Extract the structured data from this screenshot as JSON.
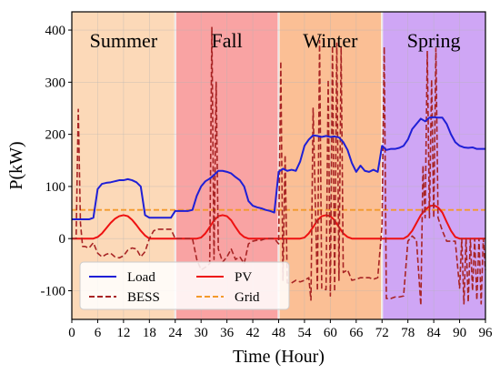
{
  "chart_data": {
    "type": "line",
    "xlabel": "Time (Hour)",
    "ylabel": "P(kW)",
    "xlim": [
      0,
      96
    ],
    "ylim": [
      -155,
      435
    ],
    "xticks": [
      0,
      6,
      12,
      18,
      24,
      30,
      36,
      42,
      48,
      54,
      60,
      66,
      72,
      78,
      84,
      90,
      96
    ],
    "yticks": [
      -100,
      0,
      100,
      200,
      300,
      400
    ],
    "grid": true,
    "legend_position": "bottom-left",
    "seasons": [
      {
        "name": "Summer",
        "start": 0,
        "end": 24,
        "color": "#fcd9b8"
      },
      {
        "name": "Fall",
        "start": 24,
        "end": 48,
        "color": "#f9a3a3"
      },
      {
        "name": "Winter",
        "start": 48,
        "end": 72,
        "color": "#fbbf95"
      },
      {
        "name": "Spring",
        "start": 72,
        "end": 96,
        "color": "#cfa6f5"
      }
    ],
    "series": [
      {
        "name": "Load",
        "color": "#1f1fd6",
        "style": "solid",
        "points": [
          [
            0,
            37
          ],
          [
            1,
            37
          ],
          [
            2,
            37
          ],
          [
            3,
            37
          ],
          [
            4,
            37
          ],
          [
            5,
            40
          ],
          [
            6,
            95
          ],
          [
            7,
            105
          ],
          [
            8,
            107
          ],
          [
            9,
            108
          ],
          [
            10,
            110
          ],
          [
            11,
            112
          ],
          [
            12,
            112
          ],
          [
            13,
            114
          ],
          [
            14,
            112
          ],
          [
            15,
            108
          ],
          [
            16,
            100
          ],
          [
            17,
            45
          ],
          [
            18,
            40
          ],
          [
            19,
            40
          ],
          [
            20,
            40
          ],
          [
            21,
            40
          ],
          [
            22,
            40
          ],
          [
            23,
            40
          ],
          [
            24,
            53
          ],
          [
            25,
            53
          ],
          [
            26,
            53
          ],
          [
            27,
            53
          ],
          [
            28,
            55
          ],
          [
            29,
            82
          ],
          [
            30,
            100
          ],
          [
            31,
            110
          ],
          [
            32,
            115
          ],
          [
            33,
            122
          ],
          [
            34,
            130
          ],
          [
            35,
            130
          ],
          [
            36,
            128
          ],
          [
            37,
            125
          ],
          [
            38,
            118
          ],
          [
            39,
            112
          ],
          [
            40,
            100
          ],
          [
            41,
            72
          ],
          [
            42,
            63
          ],
          [
            43,
            60
          ],
          [
            44,
            58
          ],
          [
            45,
            55
          ],
          [
            46,
            53
          ],
          [
            47,
            50
          ],
          [
            48,
            128
          ],
          [
            49,
            134
          ],
          [
            50,
            130
          ],
          [
            51,
            132
          ],
          [
            52,
            130
          ],
          [
            53,
            148
          ],
          [
            54,
            178
          ],
          [
            55,
            190
          ],
          [
            56,
            198
          ],
          [
            57,
            197
          ],
          [
            58,
            195
          ],
          [
            59,
            197
          ],
          [
            60,
            195
          ],
          [
            61,
            196
          ],
          [
            62,
            194
          ],
          [
            63,
            185
          ],
          [
            64,
            170
          ],
          [
            65,
            145
          ],
          [
            66,
            128
          ],
          [
            67,
            140
          ],
          [
            68,
            130
          ],
          [
            69,
            128
          ],
          [
            70,
            132
          ],
          [
            71,
            128
          ],
          [
            72,
            178
          ],
          [
            73,
            170
          ],
          [
            74,
            172
          ],
          [
            75,
            172
          ],
          [
            76,
            174
          ],
          [
            77,
            178
          ],
          [
            78,
            190
          ],
          [
            79,
            210
          ],
          [
            80,
            220
          ],
          [
            81,
            230
          ],
          [
            82,
            225
          ],
          [
            83,
            232
          ],
          [
            84,
            233
          ],
          [
            85,
            232
          ],
          [
            86,
            232
          ],
          [
            87,
            220
          ],
          [
            88,
            200
          ],
          [
            89,
            185
          ],
          [
            90,
            178
          ],
          [
            91,
            175
          ],
          [
            92,
            174
          ],
          [
            93,
            175
          ],
          [
            94,
            172
          ],
          [
            95,
            172
          ],
          [
            96,
            172
          ]
        ]
      },
      {
        "name": "PV",
        "color": "#ee1111",
        "style": "solid",
        "points": [
          [
            0,
            0
          ],
          [
            1,
            0
          ],
          [
            2,
            0
          ],
          [
            3,
            0
          ],
          [
            4,
            0
          ],
          [
            5,
            0
          ],
          [
            6,
            3
          ],
          [
            7,
            10
          ],
          [
            8,
            20
          ],
          [
            9,
            30
          ],
          [
            10,
            38
          ],
          [
            11,
            43
          ],
          [
            12,
            45
          ],
          [
            13,
            43
          ],
          [
            14,
            36
          ],
          [
            15,
            26
          ],
          [
            16,
            15
          ],
          [
            17,
            6
          ],
          [
            18,
            0
          ],
          [
            19,
            0
          ],
          [
            20,
            0
          ],
          [
            21,
            0
          ],
          [
            22,
            0
          ],
          [
            23,
            0
          ],
          [
            24,
            0
          ],
          [
            25,
            0
          ],
          [
            26,
            0
          ],
          [
            27,
            0
          ],
          [
            28,
            0
          ],
          [
            29,
            0
          ],
          [
            30,
            2
          ],
          [
            31,
            10
          ],
          [
            32,
            22
          ],
          [
            33,
            35
          ],
          [
            34,
            43
          ],
          [
            35,
            45
          ],
          [
            36,
            43
          ],
          [
            37,
            35
          ],
          [
            38,
            22
          ],
          [
            39,
            10
          ],
          [
            40,
            3
          ],
          [
            41,
            0
          ],
          [
            42,
            0
          ],
          [
            43,
            0
          ],
          [
            44,
            0
          ],
          [
            45,
            0
          ],
          [
            46,
            0
          ],
          [
            47,
            0
          ],
          [
            48,
            0
          ],
          [
            49,
            0
          ],
          [
            50,
            0
          ],
          [
            51,
            0
          ],
          [
            52,
            0
          ],
          [
            53,
            0
          ],
          [
            54,
            2
          ],
          [
            55,
            10
          ],
          [
            56,
            22
          ],
          [
            57,
            35
          ],
          [
            58,
            43
          ],
          [
            59,
            45
          ],
          [
            60,
            43
          ],
          [
            61,
            35
          ],
          [
            62,
            22
          ],
          [
            63,
            10
          ],
          [
            64,
            3
          ],
          [
            65,
            0
          ],
          [
            66,
            0
          ],
          [
            67,
            0
          ],
          [
            68,
            0
          ],
          [
            69,
            0
          ],
          [
            70,
            0
          ],
          [
            71,
            0
          ],
          [
            72,
            0
          ],
          [
            73,
            0
          ],
          [
            74,
            0
          ],
          [
            75,
            0
          ],
          [
            76,
            0
          ],
          [
            77,
            0
          ],
          [
            78,
            5
          ],
          [
            79,
            15
          ],
          [
            80,
            30
          ],
          [
            81,
            45
          ],
          [
            82,
            55
          ],
          [
            83,
            62
          ],
          [
            84,
            64
          ],
          [
            85,
            60
          ],
          [
            86,
            50
          ],
          [
            87,
            32
          ],
          [
            88,
            15
          ],
          [
            89,
            3
          ],
          [
            90,
            0
          ],
          [
            91,
            0
          ],
          [
            92,
            0
          ],
          [
            93,
            0
          ],
          [
            94,
            0
          ],
          [
            95,
            0
          ],
          [
            96,
            0
          ]
        ]
      },
      {
        "name": "BESS",
        "color": "#a82424",
        "style": "dashed",
        "points": [
          [
            0,
            0
          ],
          [
            1,
            0
          ],
          [
            1.5,
            248
          ],
          [
            2,
            30
          ],
          [
            2.5,
            -15
          ],
          [
            3,
            -15
          ],
          [
            4,
            -18
          ],
          [
            5,
            -8
          ],
          [
            6,
            -28
          ],
          [
            7,
            -35
          ],
          [
            8,
            -30
          ],
          [
            9,
            -28
          ],
          [
            10,
            -35
          ],
          [
            11,
            -37
          ],
          [
            12,
            -33
          ],
          [
            13,
            -22
          ],
          [
            14,
            -18
          ],
          [
            15,
            -20
          ],
          [
            16,
            -35
          ],
          [
            17,
            -25
          ],
          [
            18,
            0
          ],
          [
            19,
            15
          ],
          [
            20,
            18
          ],
          [
            21,
            18
          ],
          [
            22,
            18
          ],
          [
            23,
            18
          ],
          [
            24,
            0
          ],
          [
            25,
            0
          ],
          [
            26,
            0
          ],
          [
            27,
            0
          ],
          [
            28,
            0
          ],
          [
            29,
            -40
          ],
          [
            30,
            -60
          ],
          [
            31,
            -55
          ],
          [
            32,
            -48
          ],
          [
            32.5,
            405
          ],
          [
            33,
            -40
          ],
          [
            33.5,
            300
          ],
          [
            34,
            -20
          ],
          [
            35,
            -45
          ],
          [
            36,
            -35
          ],
          [
            37,
            -20
          ],
          [
            38,
            -40
          ],
          [
            39,
            -35
          ],
          [
            40,
            -48
          ],
          [
            41,
            -10
          ],
          [
            42,
            -5
          ],
          [
            43,
            -3
          ],
          [
            44,
            -3
          ],
          [
            45,
            0
          ],
          [
            46,
            0
          ],
          [
            47,
            0
          ],
          [
            48,
            -10
          ],
          [
            48.5,
            340
          ],
          [
            49,
            -80
          ],
          [
            49.5,
            160
          ],
          [
            50,
            -85
          ],
          [
            51,
            -85
          ],
          [
            52,
            -80
          ],
          [
            53,
            -83
          ],
          [
            54,
            -80
          ],
          [
            55,
            -75
          ],
          [
            55.5,
            -118
          ],
          [
            56,
            250
          ],
          [
            57,
            -100
          ],
          [
            57.5,
            380
          ],
          [
            58,
            -95
          ],
          [
            59,
            -98
          ],
          [
            59.5,
            305
          ],
          [
            60,
            -110
          ],
          [
            60.5,
            370
          ],
          [
            61,
            -102
          ],
          [
            61.5,
            375
          ],
          [
            62,
            -80
          ],
          [
            62.5,
            368
          ],
          [
            63,
            -65
          ],
          [
            64,
            -60
          ],
          [
            65,
            -80
          ],
          [
            66,
            -78
          ],
          [
            67,
            -75
          ],
          [
            68,
            -75
          ],
          [
            69,
            -75
          ],
          [
            70,
            -78
          ],
          [
            71,
            -75
          ],
          [
            72,
            25
          ],
          [
            72.5,
            368
          ],
          [
            73,
            -115
          ],
          [
            74,
            -115
          ],
          [
            75,
            -112
          ],
          [
            76,
            -112
          ],
          [
            77,
            -110
          ],
          [
            78,
            -5
          ],
          [
            79,
            5
          ],
          [
            80,
            -3
          ],
          [
            81,
            -128
          ],
          [
            81.5,
            140
          ],
          [
            82,
            40
          ],
          [
            82.5,
            360
          ],
          [
            83,
            40
          ],
          [
            83.5,
            305
          ],
          [
            84,
            40
          ],
          [
            84.5,
            365
          ],
          [
            85,
            40
          ],
          [
            86,
            15
          ],
          [
            87,
            -5
          ],
          [
            88,
            -5
          ],
          [
            89,
            -5
          ],
          [
            90,
            -95
          ],
          [
            90.5,
            0
          ],
          [
            91,
            -125
          ],
          [
            91.5,
            0
          ],
          [
            92,
            -122
          ],
          [
            92.5,
            0
          ],
          [
            93,
            -100
          ],
          [
            93.5,
            0
          ],
          [
            94,
            -118
          ],
          [
            94.5,
            0
          ],
          [
            95,
            -125
          ],
          [
            95.5,
            0
          ],
          [
            96,
            -60
          ]
        ]
      },
      {
        "name": "Grid",
        "color": "#f39a2c",
        "style": "dashed",
        "points": [
          [
            0,
            55
          ],
          [
            96,
            55
          ]
        ]
      }
    ]
  }
}
